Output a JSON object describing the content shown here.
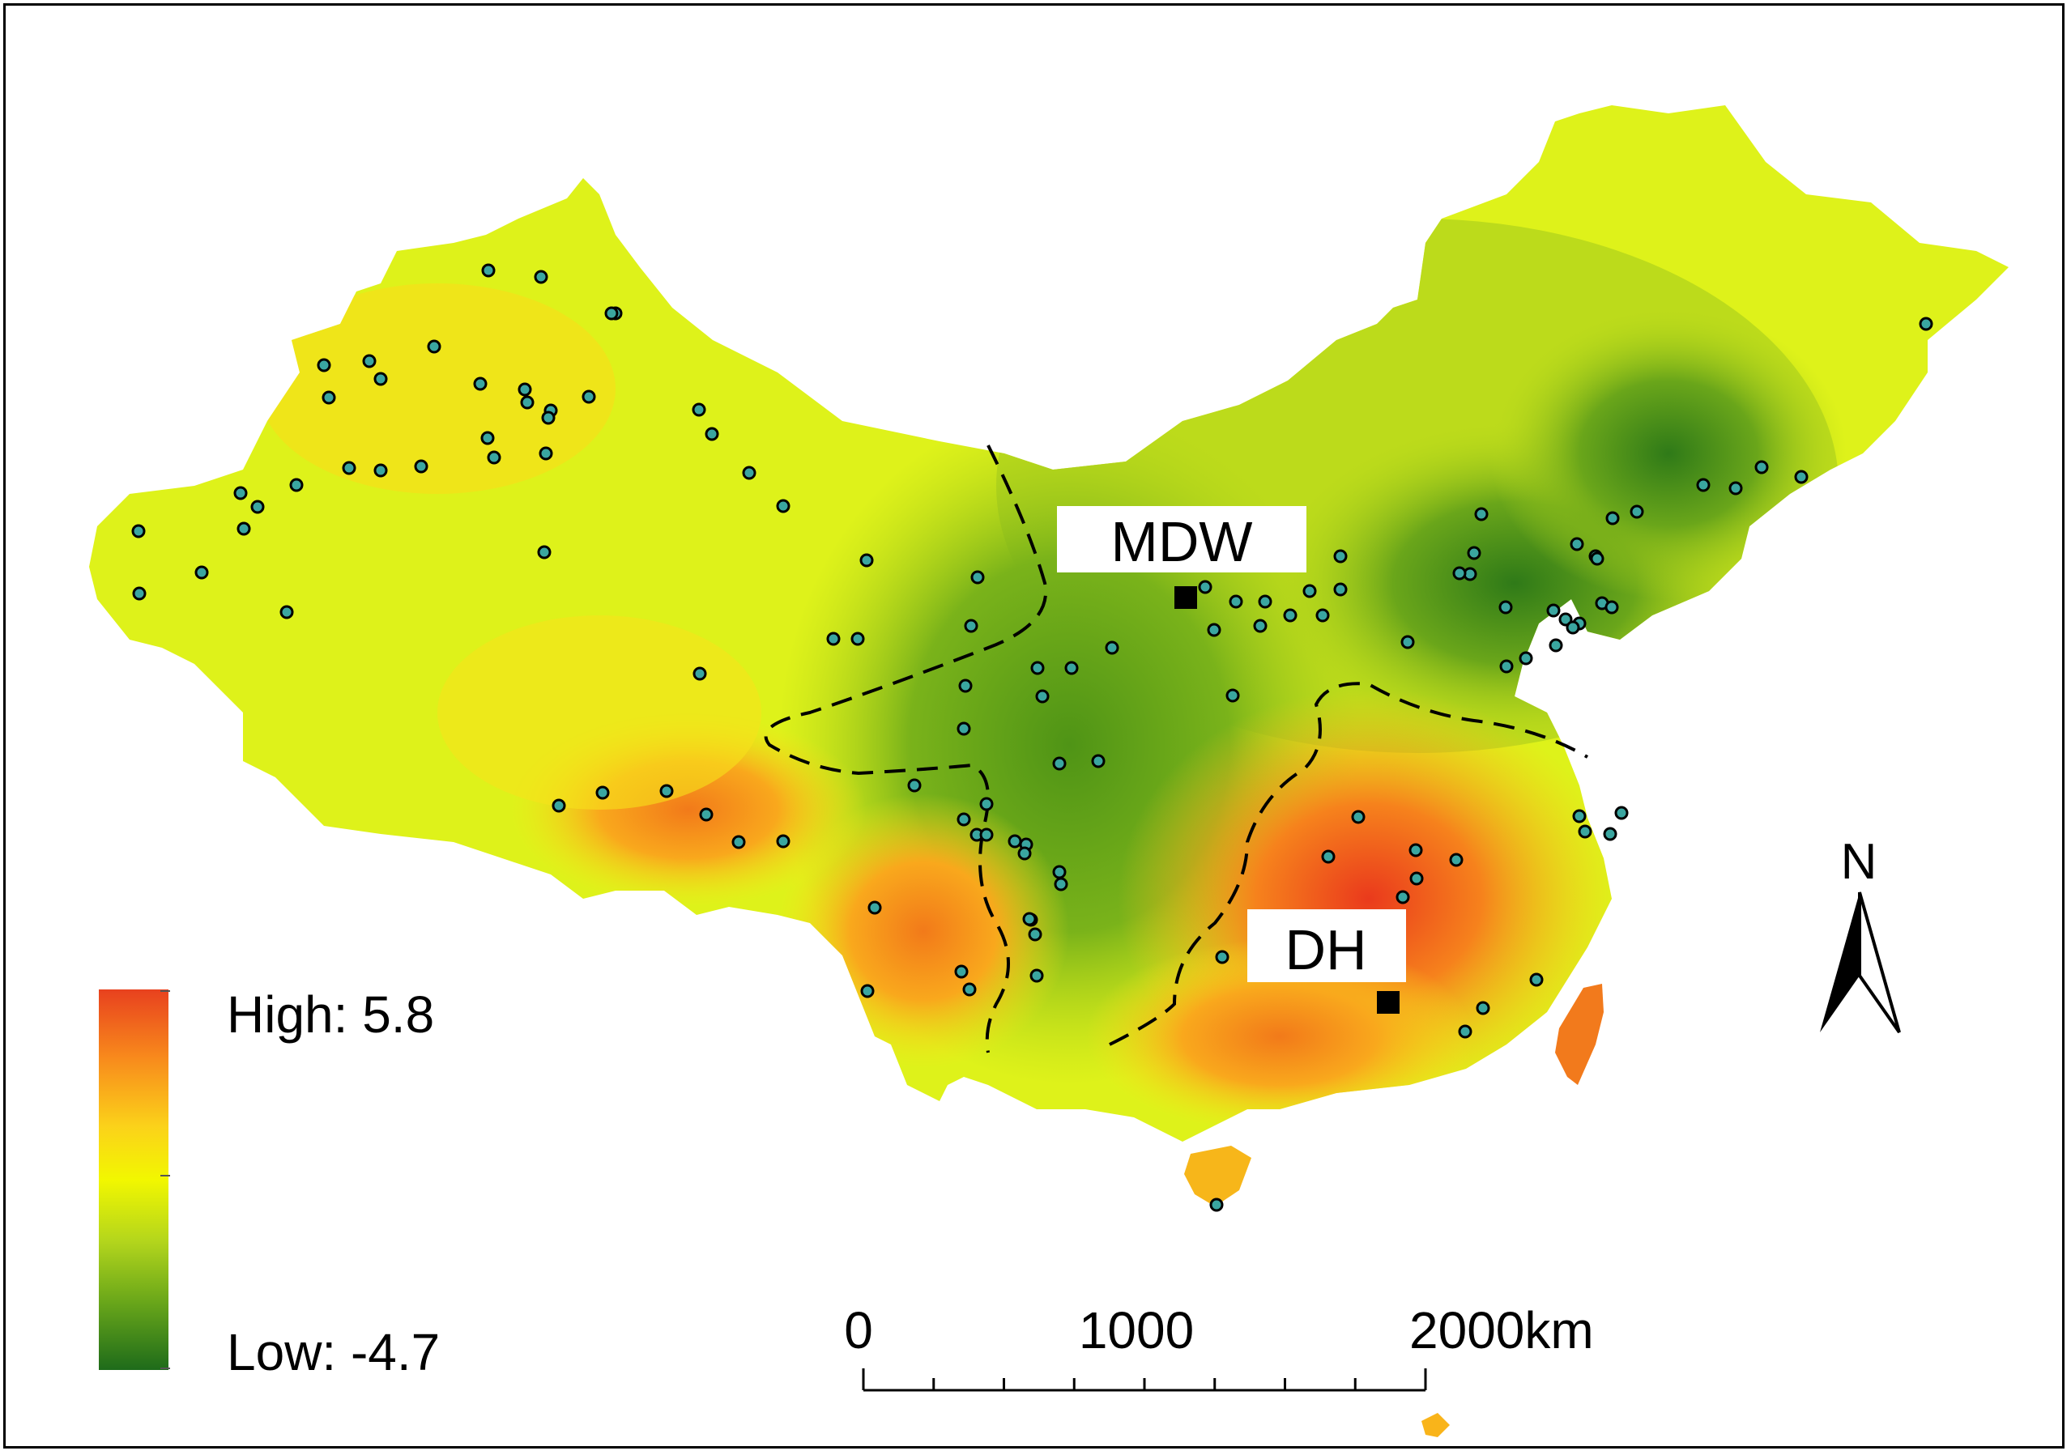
{
  "labels": {
    "site_mdw": "MDW",
    "site_dh": "DH"
  },
  "legend": {
    "high_label": "High: 5.8",
    "low_label": "Low: -4.7",
    "high_value": 5.8,
    "low_value": -4.7,
    "colors": [
      "#e8411e",
      "#f88a1c",
      "#fbd21a",
      "#f2f700",
      "#b4d61c",
      "#6aa71a",
      "#1e6b1a"
    ]
  },
  "scale_bar": {
    "tick_0": "0",
    "tick_1000": "1000",
    "tick_2000": "2000km"
  },
  "north_arrow": {
    "label": "N",
    "icon": "north-arrow-icon"
  },
  "colors": {
    "frame": "#000000",
    "station_fill": "#3aa6a0",
    "site_marker": "#000000",
    "boundary_line": "#000000"
  }
}
